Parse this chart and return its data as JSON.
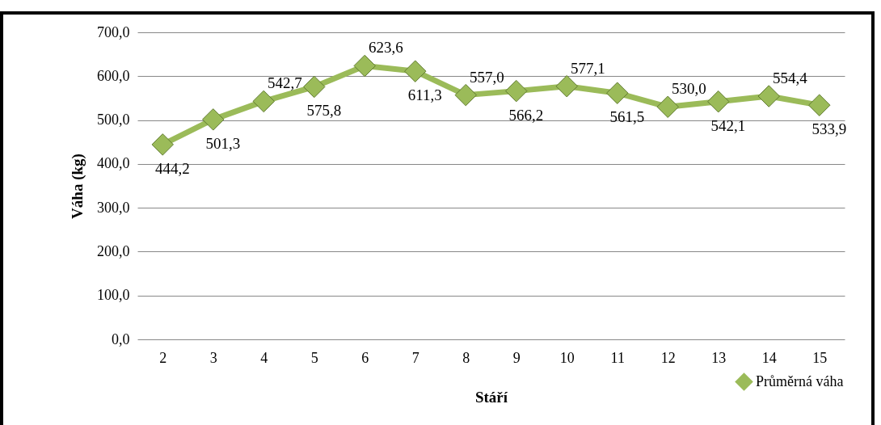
{
  "chart_data": {
    "type": "line",
    "xlabel": "Stáří",
    "ylabel": "Váha (kg)",
    "categories": [
      "2",
      "3",
      "4",
      "5",
      "6",
      "7",
      "8",
      "9",
      "10",
      "11",
      "12",
      "13",
      "14",
      "15"
    ],
    "series": [
      {
        "name": "Průměrná váha",
        "color": "#9bbb59",
        "values": [
          444.2,
          501.3,
          542.7,
          575.8,
          623.6,
          611.3,
          557.0,
          566.2,
          577.1,
          561.5,
          530.0,
          542.1,
          554.4,
          533.9
        ],
        "value_labels": [
          "444,2",
          "501,3",
          "542,7",
          "575,8",
          "623,6",
          "611,3",
          "557,0",
          "566,2",
          "577,1",
          "561,5",
          "530,0",
          "542,1",
          "554,4",
          "533,9"
        ]
      }
    ],
    "ylim": [
      0,
      700
    ],
    "yticks": [
      {
        "value": 0,
        "label": "0,0"
      },
      {
        "value": 100,
        "label": "100,0"
      },
      {
        "value": 200,
        "label": "200,0"
      },
      {
        "value": 300,
        "label": "300,0"
      },
      {
        "value": 400,
        "label": "400,0"
      },
      {
        "value": 500,
        "label": "500,0"
      },
      {
        "value": 600,
        "label": "600,0"
      },
      {
        "value": 700,
        "label": "700,0"
      }
    ],
    "grid": "y",
    "legend": "bottom right",
    "marker": "diamond",
    "line_style": "solid"
  }
}
